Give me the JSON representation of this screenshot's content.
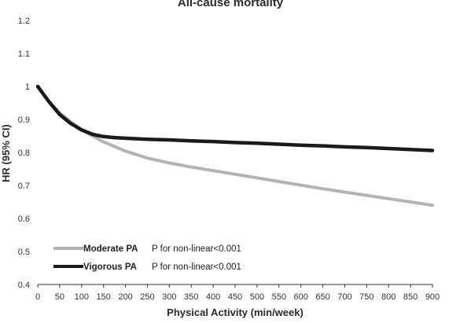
{
  "chart_data": {
    "type": "line",
    "title": "All-cause mortality",
    "xlabel": "Physical Activity (min/week)",
    "ylabel": "HR (95% CI)",
    "xlim": [
      0,
      900
    ],
    "ylim": [
      0.4,
      1.2
    ],
    "x_ticks": [
      "0",
      "50",
      "100",
      "150",
      "200",
      "250",
      "300",
      "350",
      "400",
      "450",
      "500",
      "550",
      "600",
      "650",
      "700",
      "750",
      "800",
      "850",
      "900"
    ],
    "y_ticks": [
      "0.4",
      "0.5",
      "0.6",
      "0.7",
      "0.8",
      "0.9",
      "1",
      "1.1",
      "1.2"
    ],
    "grid": false,
    "legend_position": "bottom-left",
    "series": [
      {
        "name": "Moderate PA",
        "note": "P for non-linear<0.001",
        "color": "#b3b3b3",
        "x": [
          0,
          25,
          50,
          75,
          100,
          125,
          150,
          175,
          200,
          250,
          300,
          350,
          400,
          450,
          500,
          550,
          600,
          650,
          700,
          750,
          800,
          850,
          900
        ],
        "y": [
          1.0,
          0.955,
          0.92,
          0.893,
          0.87,
          0.85,
          0.832,
          0.818,
          0.804,
          0.783,
          0.768,
          0.756,
          0.745,
          0.734,
          0.723,
          0.712,
          0.701,
          0.69,
          0.68,
          0.67,
          0.66,
          0.65,
          0.64
        ]
      },
      {
        "name": "Vigorous PA",
        "note": "P for non-linear<0.001",
        "color": "#1a1a1a",
        "x": [
          0,
          25,
          50,
          75,
          100,
          125,
          150,
          175,
          200,
          250,
          300,
          350,
          400,
          450,
          500,
          550,
          600,
          650,
          700,
          750,
          800,
          850,
          900
        ],
        "y": [
          1.0,
          0.955,
          0.915,
          0.888,
          0.868,
          0.855,
          0.848,
          0.845,
          0.843,
          0.84,
          0.838,
          0.835,
          0.833,
          0.83,
          0.828,
          0.825,
          0.822,
          0.82,
          0.817,
          0.815,
          0.812,
          0.809,
          0.806
        ]
      }
    ]
  }
}
